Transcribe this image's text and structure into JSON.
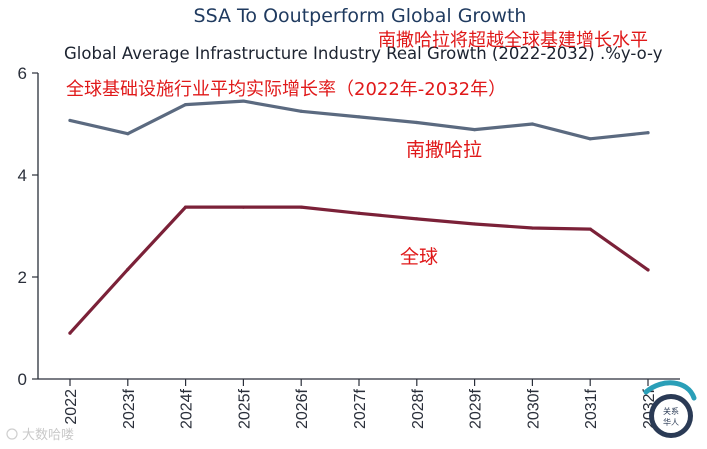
{
  "chart_data": {
    "type": "line",
    "title": "SSA To Ooutperform Global Growth",
    "subtitle": "Global Average Infrastructure Industry Real Growth (2022-2032) .%y-o-y",
    "annotations": {
      "top_cn": "南撒哈拉将超越全球基建增长水平",
      "sub_cn": "全球基础设施行业平均实际增长率（2022年-2032年）",
      "ssa_label": "南撒哈拉",
      "global_label": "全球"
    },
    "categories": [
      "2022",
      "2023f",
      "2024f",
      "2025f",
      "2026f",
      "2027f",
      "2028f",
      "2029f",
      "2030f",
      "2031f",
      "2032f"
    ],
    "yticks": [
      "0",
      "2",
      "4",
      "6"
    ],
    "ylim": [
      0,
      6
    ],
    "series": [
      {
        "name": "南撒哈拉",
        "color": "#5b6a80",
        "values": [
          5.07,
          4.81,
          5.38,
          5.45,
          5.25,
          5.14,
          5.03,
          4.89,
          5.0,
          4.71,
          4.83
        ]
      },
      {
        "name": "全球",
        "color": "#7b2138",
        "values": [
          0.9,
          2.15,
          3.37,
          3.37,
          3.37,
          3.25,
          3.14,
          3.04,
          2.96,
          2.94,
          2.14
        ]
      }
    ],
    "grid": false,
    "watermark": "大数哈喽"
  },
  "logo": {
    "line1": "关系",
    "line2": "华人"
  }
}
